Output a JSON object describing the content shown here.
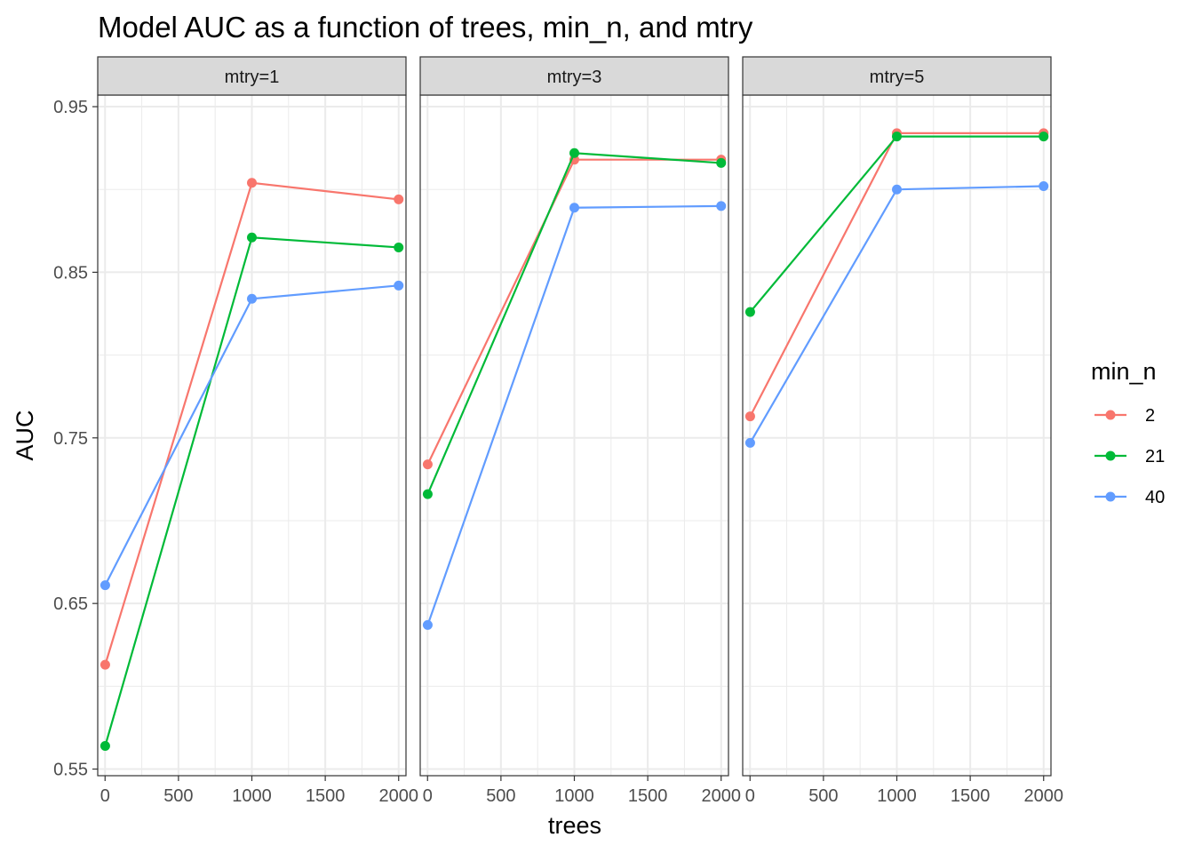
{
  "chart_data": {
    "type": "line",
    "title": "Model AUC as a function of trees, min_n, and mtry",
    "xlabel": "trees",
    "ylabel": "AUC",
    "xlim": [
      -50,
      2050
    ],
    "ylim": [
      0.546,
      0.957
    ],
    "x_ticks": [
      0,
      500,
      1000,
      1500,
      2000
    ],
    "x_tick_labels": [
      "0",
      "500",
      "1000",
      "1500",
      "2000"
    ],
    "y_ticks": [
      0.55,
      0.65,
      0.75,
      0.85,
      0.95
    ],
    "y_tick_labels": [
      "0.55",
      "0.65",
      "0.75",
      "0.85",
      "0.95"
    ],
    "grid": true,
    "legend": {
      "title": "min_n",
      "placement": "right",
      "entries": [
        "2",
        "21",
        "40"
      ]
    },
    "series_colors": {
      "2": "#F8766D",
      "21": "#00BA38",
      "40": "#619CFF"
    },
    "x": [
      1,
      1000,
      2000
    ],
    "facets": [
      {
        "label": "mtry=1",
        "series": [
          {
            "name": "2",
            "values": [
              0.613,
              0.904,
              0.894
            ]
          },
          {
            "name": "21",
            "values": [
              0.564,
              0.871,
              0.865
            ]
          },
          {
            "name": "40",
            "values": [
              0.661,
              0.834,
              0.842
            ]
          }
        ]
      },
      {
        "label": "mtry=3",
        "series": [
          {
            "name": "2",
            "values": [
              0.734,
              0.918,
              0.918
            ]
          },
          {
            "name": "21",
            "values": [
              0.716,
              0.922,
              0.916
            ]
          },
          {
            "name": "40",
            "values": [
              0.637,
              0.889,
              0.89
            ]
          }
        ]
      },
      {
        "label": "mtry=5",
        "series": [
          {
            "name": "2",
            "values": [
              0.763,
              0.934,
              0.934
            ]
          },
          {
            "name": "21",
            "values": [
              0.826,
              0.932,
              0.932
            ]
          },
          {
            "name": "40",
            "values": [
              0.747,
              0.9,
              0.902
            ]
          }
        ]
      }
    ]
  }
}
